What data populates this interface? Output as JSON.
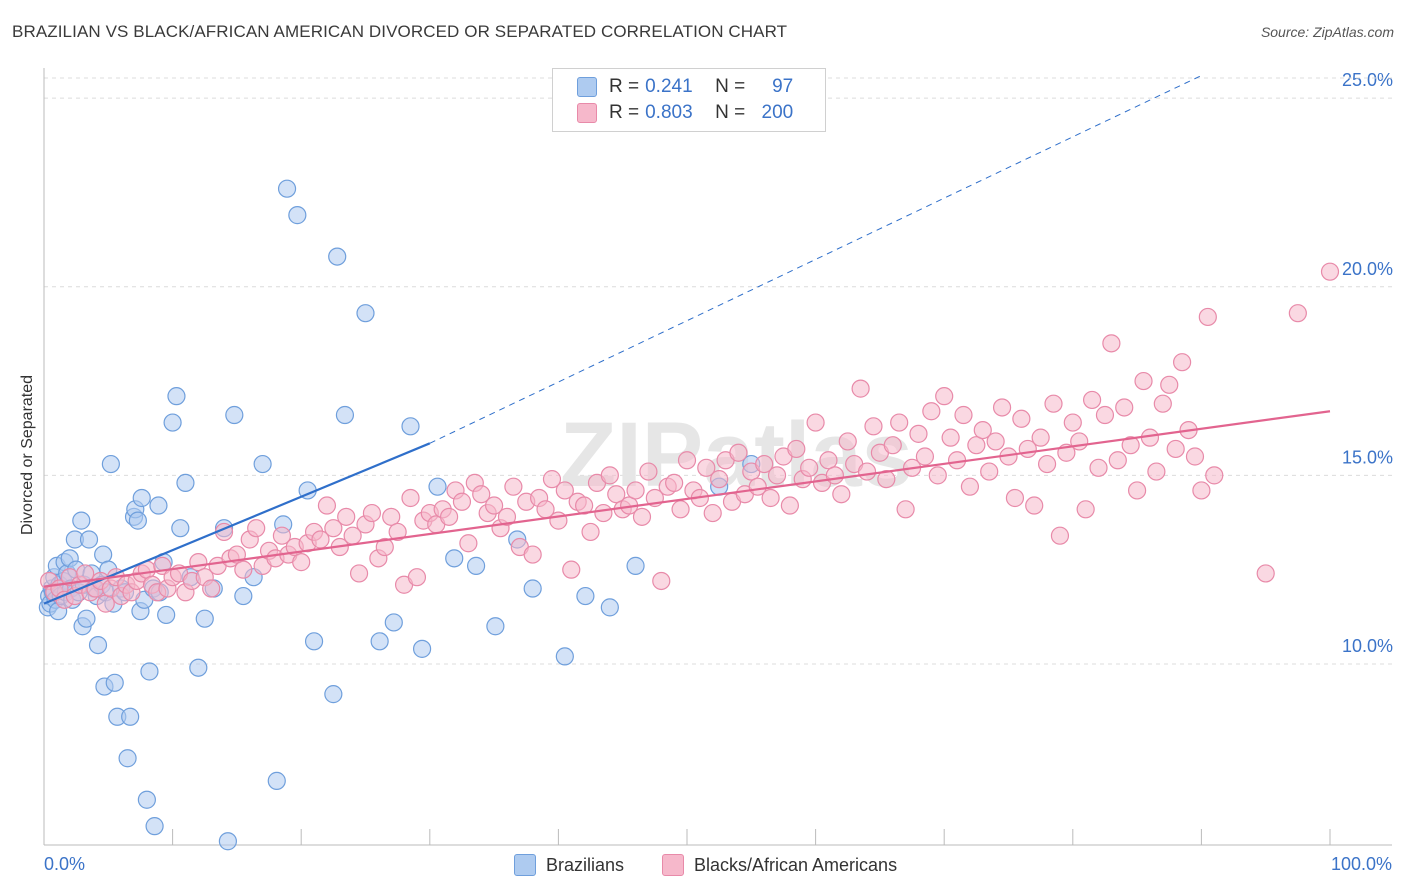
{
  "title": "BRAZILIAN VS BLACK/AFRICAN AMERICAN DIVORCED OR SEPARATED CORRELATION CHART",
  "source": "Source: ZipAtlas.com",
  "watermark": "ZIPatlas",
  "colors": {
    "blue_fill": "#aecbf0",
    "blue_stroke": "#6f9fdc",
    "blue_line": "#2f6fca",
    "pink_fill": "#f6b8cb",
    "pink_stroke": "#e88aa9",
    "pink_line": "#e2648f",
    "accent_text": "#3b73c8",
    "grid": "#dcdcdc"
  },
  "legend": {
    "rows": [
      {
        "r_label": "R =",
        "r_value": "0.241",
        "n_label": "N =",
        "n_value": "97"
      },
      {
        "r_label": "R =",
        "r_value": "0.803",
        "n_label": "N =",
        "n_value": "200"
      }
    ]
  },
  "bottom_legend": [
    "Brazilians",
    "Blacks/African Americans"
  ],
  "chart_data": {
    "type": "scatter",
    "title": "BRAZILIAN VS BLACK/AFRICAN AMERICAN DIVORCED OR SEPARATED CORRELATION CHART",
    "xlabel": "",
    "ylabel": "Divorced or Separated",
    "xlim": [
      0,
      100
    ],
    "ylim": [
      5.2,
      25.8
    ],
    "x_tick_labels": [
      "0.0%",
      "100.0%"
    ],
    "y_ticks": [
      10,
      15,
      20,
      25
    ],
    "y_tick_labels": [
      "10.0%",
      "15.0%",
      "20.0%",
      "25.0%"
    ],
    "grid": true,
    "legend_position": "top-center",
    "series": [
      {
        "name": "Brazilians",
        "r": 0.241,
        "n": 97,
        "trend": {
          "x": [
            0,
            30
          ],
          "y": [
            11.6,
            15.85
          ],
          "extended_to": [
            90,
            25.6
          ]
        },
        "points": [
          [
            0.3,
            11.5
          ],
          [
            0.4,
            11.8
          ],
          [
            0.5,
            11.6
          ],
          [
            0.6,
            12.0
          ],
          [
            0.7,
            11.9
          ],
          [
            0.8,
            12.3
          ],
          [
            0.9,
            11.7
          ],
          [
            1.0,
            12.6
          ],
          [
            1.1,
            11.4
          ],
          [
            1.2,
            12.1
          ],
          [
            1.3,
            11.8
          ],
          [
            1.5,
            12.2
          ],
          [
            1.6,
            12.7
          ],
          [
            1.7,
            11.9
          ],
          [
            1.8,
            12.4
          ],
          [
            2.0,
            12.8
          ],
          [
            2.1,
            12.0
          ],
          [
            2.2,
            11.7
          ],
          [
            2.4,
            13.3
          ],
          [
            2.5,
            12.5
          ],
          [
            2.7,
            11.9
          ],
          [
            2.9,
            13.8
          ],
          [
            3.0,
            11.0
          ],
          [
            3.1,
            12.1
          ],
          [
            3.3,
            11.2
          ],
          [
            3.5,
            13.3
          ],
          [
            3.7,
            12.4
          ],
          [
            3.9,
            12.0
          ],
          [
            4.1,
            11.8
          ],
          [
            4.2,
            10.5
          ],
          [
            4.5,
            12.1
          ],
          [
            4.6,
            12.9
          ],
          [
            4.7,
            9.4
          ],
          [
            4.8,
            11.9
          ],
          [
            5.0,
            12.5
          ],
          [
            5.2,
            15.3
          ],
          [
            5.4,
            11.6
          ],
          [
            5.5,
            9.5
          ],
          [
            5.7,
            8.6
          ],
          [
            6.0,
            12.0
          ],
          [
            6.3,
            11.9
          ],
          [
            6.5,
            7.5
          ],
          [
            6.7,
            8.6
          ],
          [
            7.0,
            13.9
          ],
          [
            7.1,
            14.1
          ],
          [
            7.3,
            13.8
          ],
          [
            7.5,
            11.4
          ],
          [
            7.6,
            14.4
          ],
          [
            7.8,
            11.7
          ],
          [
            8.0,
            6.4
          ],
          [
            8.2,
            9.8
          ],
          [
            8.5,
            12.0
          ],
          [
            8.6,
            5.7
          ],
          [
            8.9,
            14.2
          ],
          [
            9.0,
            11.9
          ],
          [
            9.3,
            12.7
          ],
          [
            9.5,
            11.3
          ],
          [
            10.0,
            16.4
          ],
          [
            10.3,
            17.1
          ],
          [
            10.6,
            13.6
          ],
          [
            11.0,
            14.8
          ],
          [
            11.4,
            12.3
          ],
          [
            12.0,
            9.9
          ],
          [
            12.5,
            11.2
          ],
          [
            13.2,
            12.0
          ],
          [
            14.0,
            13.6
          ],
          [
            14.3,
            5.3
          ],
          [
            14.8,
            16.6
          ],
          [
            15.5,
            11.8
          ],
          [
            16.3,
            12.3
          ],
          [
            17.0,
            15.3
          ],
          [
            18.1,
            6.9
          ],
          [
            18.6,
            13.7
          ],
          [
            18.9,
            22.6
          ],
          [
            19.7,
            21.9
          ],
          [
            20.5,
            14.6
          ],
          [
            21.0,
            10.6
          ],
          [
            22.5,
            9.2
          ],
          [
            22.8,
            20.8
          ],
          [
            23.4,
            16.6
          ],
          [
            25.0,
            19.3
          ],
          [
            26.1,
            10.6
          ],
          [
            27.2,
            11.1
          ],
          [
            28.5,
            16.3
          ],
          [
            29.4,
            10.4
          ],
          [
            30.6,
            14.7
          ],
          [
            31.9,
            12.8
          ],
          [
            33.6,
            12.6
          ],
          [
            35.1,
            11.0
          ],
          [
            36.8,
            13.3
          ],
          [
            38.0,
            12.0
          ],
          [
            40.5,
            10.2
          ],
          [
            42.1,
            11.8
          ],
          [
            44.0,
            11.5
          ],
          [
            46.0,
            12.6
          ],
          [
            52.5,
            14.7
          ],
          [
            55.0,
            15.3
          ]
        ]
      },
      {
        "name": "Blacks/African Americans",
        "r": 0.803,
        "n": 200,
        "trend": {
          "x": [
            0,
            100
          ],
          "y": [
            12.05,
            16.7
          ]
        },
        "points": [
          [
            0.4,
            12.2
          ],
          [
            0.8,
            11.9
          ],
          [
            1.2,
            12.0
          ],
          [
            1.6,
            11.7
          ],
          [
            2.0,
            12.3
          ],
          [
            2.4,
            11.8
          ],
          [
            2.8,
            12.1
          ],
          [
            3.2,
            12.4
          ],
          [
            3.6,
            11.9
          ],
          [
            4.0,
            12.0
          ],
          [
            4.4,
            12.2
          ],
          [
            4.8,
            11.6
          ],
          [
            5.2,
            12.0
          ],
          [
            5.6,
            12.3
          ],
          [
            6.0,
            11.8
          ],
          [
            6.4,
            12.1
          ],
          [
            6.8,
            11.9
          ],
          [
            7.2,
            12.2
          ],
          [
            7.6,
            12.4
          ],
          [
            8.0,
            12.5
          ],
          [
            8.4,
            12.1
          ],
          [
            8.8,
            11.9
          ],
          [
            9.2,
            12.6
          ],
          [
            9.6,
            12.0
          ],
          [
            10.0,
            12.3
          ],
          [
            10.5,
            12.4
          ],
          [
            11.0,
            11.9
          ],
          [
            11.5,
            12.2
          ],
          [
            12.0,
            12.7
          ],
          [
            12.5,
            12.3
          ],
          [
            13.0,
            12.0
          ],
          [
            13.5,
            12.6
          ],
          [
            14.0,
            13.5
          ],
          [
            14.5,
            12.8
          ],
          [
            15.0,
            12.9
          ],
          [
            15.5,
            12.5
          ],
          [
            16.0,
            13.3
          ],
          [
            16.5,
            13.6
          ],
          [
            17.0,
            12.6
          ],
          [
            17.5,
            13.0
          ],
          [
            18.0,
            12.8
          ],
          [
            18.5,
            13.4
          ],
          [
            19.0,
            12.9
          ],
          [
            19.5,
            13.1
          ],
          [
            20.0,
            12.7
          ],
          [
            20.5,
            13.2
          ],
          [
            21.0,
            13.5
          ],
          [
            21.5,
            13.3
          ],
          [
            22.0,
            14.2
          ],
          [
            22.5,
            13.6
          ],
          [
            23.0,
            13.1
          ],
          [
            23.5,
            13.9
          ],
          [
            24.0,
            13.4
          ],
          [
            24.5,
            12.4
          ],
          [
            25.0,
            13.7
          ],
          [
            25.5,
            14.0
          ],
          [
            26.0,
            12.8
          ],
          [
            26.5,
            13.1
          ],
          [
            27.0,
            13.9
          ],
          [
            27.5,
            13.5
          ],
          [
            28.0,
            12.1
          ],
          [
            28.5,
            14.4
          ],
          [
            29.0,
            12.3
          ],
          [
            29.5,
            13.8
          ],
          [
            30.0,
            14.0
          ],
          [
            30.5,
            13.7
          ],
          [
            31.0,
            14.1
          ],
          [
            31.5,
            13.9
          ],
          [
            32.0,
            14.6
          ],
          [
            32.5,
            14.3
          ],
          [
            33.0,
            13.2
          ],
          [
            33.5,
            14.8
          ],
          [
            34.0,
            14.5
          ],
          [
            34.5,
            14.0
          ],
          [
            35.0,
            14.2
          ],
          [
            35.5,
            13.6
          ],
          [
            36.0,
            13.9
          ],
          [
            36.5,
            14.7
          ],
          [
            37.0,
            13.1
          ],
          [
            37.5,
            14.3
          ],
          [
            38.0,
            12.9
          ],
          [
            38.5,
            14.4
          ],
          [
            39.0,
            14.1
          ],
          [
            39.5,
            14.9
          ],
          [
            40.0,
            13.8
          ],
          [
            40.5,
            14.6
          ],
          [
            41.0,
            12.5
          ],
          [
            41.5,
            14.3
          ],
          [
            42.0,
            14.2
          ],
          [
            42.5,
            13.5
          ],
          [
            43.0,
            14.8
          ],
          [
            43.5,
            14.0
          ],
          [
            44.0,
            15.0
          ],
          [
            44.5,
            14.5
          ],
          [
            45.0,
            14.1
          ],
          [
            45.5,
            14.2
          ],
          [
            46.0,
            14.6
          ],
          [
            46.5,
            13.9
          ],
          [
            47.0,
            15.1
          ],
          [
            47.5,
            14.4
          ],
          [
            48.0,
            12.2
          ],
          [
            48.5,
            14.7
          ],
          [
            49.0,
            14.8
          ],
          [
            49.5,
            14.1
          ],
          [
            50.0,
            15.4
          ],
          [
            50.5,
            14.6
          ],
          [
            51.0,
            14.4
          ],
          [
            51.5,
            15.2
          ],
          [
            52.0,
            14.0
          ],
          [
            52.5,
            14.9
          ],
          [
            53.0,
            15.4
          ],
          [
            53.5,
            14.3
          ],
          [
            54.0,
            15.6
          ],
          [
            54.5,
            14.5
          ],
          [
            55.0,
            15.1
          ],
          [
            55.5,
            14.7
          ],
          [
            56.0,
            15.3
          ],
          [
            56.5,
            14.4
          ],
          [
            57.0,
            15.0
          ],
          [
            57.5,
            15.5
          ],
          [
            58.0,
            14.2
          ],
          [
            58.5,
            15.7
          ],
          [
            59.0,
            14.9
          ],
          [
            59.5,
            15.2
          ],
          [
            60.0,
            16.4
          ],
          [
            60.5,
            14.8
          ],
          [
            61.0,
            15.4
          ],
          [
            61.5,
            15.0
          ],
          [
            62.0,
            14.5
          ],
          [
            62.5,
            15.9
          ],
          [
            63.0,
            15.3
          ],
          [
            63.5,
            17.3
          ],
          [
            64.0,
            15.1
          ],
          [
            64.5,
            16.3
          ],
          [
            65.0,
            15.6
          ],
          [
            65.5,
            14.9
          ],
          [
            66.0,
            15.8
          ],
          [
            66.5,
            16.4
          ],
          [
            67.0,
            14.1
          ],
          [
            67.5,
            15.2
          ],
          [
            68.0,
            16.1
          ],
          [
            68.5,
            15.5
          ],
          [
            69.0,
            16.7
          ],
          [
            69.5,
            15.0
          ],
          [
            70.0,
            17.1
          ],
          [
            70.5,
            16.0
          ],
          [
            71.0,
            15.4
          ],
          [
            71.5,
            16.6
          ],
          [
            72.0,
            14.7
          ],
          [
            72.5,
            15.8
          ],
          [
            73.0,
            16.2
          ],
          [
            73.5,
            15.1
          ],
          [
            74.0,
            15.9
          ],
          [
            74.5,
            16.8
          ],
          [
            75.0,
            15.5
          ],
          [
            75.5,
            14.4
          ],
          [
            76.0,
            16.5
          ],
          [
            76.5,
            15.7
          ],
          [
            77.0,
            14.2
          ],
          [
            77.5,
            16.0
          ],
          [
            78.0,
            15.3
          ],
          [
            78.5,
            16.9
          ],
          [
            79.0,
            13.4
          ],
          [
            79.5,
            15.6
          ],
          [
            80.0,
            16.4
          ],
          [
            80.5,
            15.9
          ],
          [
            81.0,
            14.1
          ],
          [
            81.5,
            17.0
          ],
          [
            82.0,
            15.2
          ],
          [
            82.5,
            16.6
          ],
          [
            83.0,
            18.5
          ],
          [
            83.5,
            15.4
          ],
          [
            84.0,
            16.8
          ],
          [
            84.5,
            15.8
          ],
          [
            85.0,
            14.6
          ],
          [
            85.5,
            17.5
          ],
          [
            86.0,
            16.0
          ],
          [
            86.5,
            15.1
          ],
          [
            87.0,
            16.9
          ],
          [
            87.5,
            17.4
          ],
          [
            88.0,
            15.7
          ],
          [
            88.5,
            18.0
          ],
          [
            89.0,
            16.2
          ],
          [
            89.5,
            15.5
          ],
          [
            90.0,
            14.6
          ],
          [
            90.5,
            19.2
          ],
          [
            91.0,
            15.0
          ],
          [
            95.0,
            12.4
          ],
          [
            97.5,
            19.3
          ],
          [
            100.0,
            20.4
          ]
        ]
      }
    ]
  }
}
